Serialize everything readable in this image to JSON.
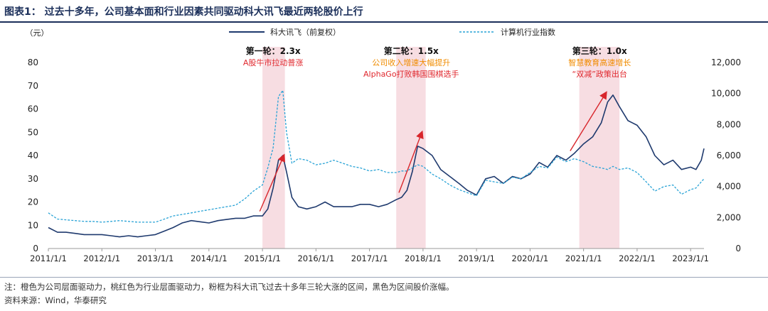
{
  "figure": {
    "title": "图表1：  过去十多年，公司基本面和行业因素共同驱动科大讯飞最近两轮股价上行",
    "footnote": "注：橙色为公司层面驱动力，桃红色为行业层面驱动力，粉框为科大讯飞过去十多年三轮大涨的区间，黑色为区间股价涨幅。",
    "source": "资料来源：Wind，华泰研究"
  },
  "chart_data": {
    "type": "line",
    "left_unit": "（元）",
    "yleft_ticks": [
      "0",
      "10",
      "20",
      "30",
      "40",
      "50",
      "60",
      "70",
      "80"
    ],
    "yleft_lim": [
      0,
      80
    ],
    "yright_ticks": [
      "0",
      "2,000",
      "4,000",
      "6,000",
      "8,000",
      "10,000",
      "12,000"
    ],
    "yright_lim": [
      0,
      12000
    ],
    "x_ticks": [
      "2011/1/1",
      "2012/1/1",
      "2013/1/1",
      "2014/1/1",
      "2015/1/1",
      "2016/1/1",
      "2017/1/1",
      "2018/1/1",
      "2019/1/1",
      "2020/1/1",
      "2021/1/1",
      "2022/1/1",
      "2023/1/1"
    ],
    "x_start": 2011.0,
    "x_end": 2023.25,
    "legend": {
      "stock": "科大讯飞（前复权）",
      "index": "计算机行业指数"
    },
    "colors": {
      "stock": "#1f3a6e",
      "index": "#29a3d6",
      "band": "#f7dde2",
      "arrow": "#d8262c",
      "orange": "#f08c00",
      "red": "#e0282e",
      "axis": "#999999"
    },
    "bands": [
      {
        "x0": 2015.0,
        "x1": 2015.42
      },
      {
        "x0": 2017.5,
        "x1": 2018.05
      },
      {
        "x0": 2020.92,
        "x1": 2021.67
      }
    ],
    "arrows": [
      {
        "x0": 2014.95,
        "y0": 16,
        "x1": 2015.4,
        "y1": 40
      },
      {
        "x0": 2017.55,
        "y0": 24,
        "x1": 2017.98,
        "y1": 50
      },
      {
        "x0": 2020.75,
        "y0": 42,
        "x1": 2021.42,
        "y1": 67
      }
    ],
    "annotations": [
      {
        "id": "r1",
        "x": 2015.2,
        "head": "第一轮：",
        "value": "2.3x",
        "lines": [
          {
            "text": "A股牛市拉动普涨",
            "tone": "red"
          }
        ]
      },
      {
        "id": "r2",
        "x": 2017.78,
        "head": "第二轮：",
        "value": "1.5x",
        "lines": [
          {
            "text": "公司收入增速大幅提升",
            "tone": "orange"
          },
          {
            "text": "AlphaGo打败韩国围棋选手",
            "tone": "red"
          }
        ]
      },
      {
        "id": "r3",
        "x": 2021.3,
        "head": "第三轮：",
        "value": "1.0x",
        "lines": [
          {
            "text": "智慧教育高速增长",
            "tone": "orange"
          },
          {
            "text": "“双减”政策出台",
            "tone": "red"
          }
        ]
      }
    ],
    "series": [
      {
        "name": "科大讯飞（前复权）",
        "axis": "left",
        "style": "solid",
        "x": [
          2011.0,
          2011.17,
          2011.33,
          2011.5,
          2011.67,
          2011.83,
          2012.0,
          2012.17,
          2012.33,
          2012.5,
          2012.67,
          2012.83,
          2013.0,
          2013.17,
          2013.33,
          2013.5,
          2013.67,
          2013.83,
          2014.0,
          2014.17,
          2014.33,
          2014.5,
          2014.67,
          2014.83,
          2015.0,
          2015.1,
          2015.2,
          2015.3,
          2015.38,
          2015.45,
          2015.55,
          2015.67,
          2015.83,
          2016.0,
          2016.17,
          2016.33,
          2016.5,
          2016.67,
          2016.83,
          2017.0,
          2017.17,
          2017.33,
          2017.5,
          2017.6,
          2017.7,
          2017.8,
          2017.9,
          2018.0,
          2018.17,
          2018.33,
          2018.5,
          2018.67,
          2018.83,
          2019.0,
          2019.17,
          2019.33,
          2019.5,
          2019.67,
          2019.83,
          2020.0,
          2020.17,
          2020.33,
          2020.5,
          2020.67,
          2020.83,
          2021.0,
          2021.17,
          2021.33,
          2021.45,
          2021.55,
          2021.67,
          2021.83,
          2022.0,
          2022.17,
          2022.33,
          2022.5,
          2022.67,
          2022.83,
          2023.0,
          2023.1,
          2023.2,
          2023.25
        ],
        "y": [
          9,
          7,
          7,
          6.5,
          6,
          6,
          6,
          5.5,
          5,
          5.5,
          5,
          5.5,
          6,
          7.5,
          9,
          11,
          12,
          11.5,
          11,
          12,
          12.5,
          13,
          13,
          14,
          14,
          17,
          26,
          38,
          40,
          33,
          22,
          18,
          17,
          18,
          20,
          18,
          18,
          18,
          19,
          19,
          18,
          19,
          21,
          22,
          25,
          33,
          44,
          43,
          40,
          34,
          31,
          28,
          25,
          23,
          30,
          31,
          28,
          31,
          30,
          32,
          37,
          35,
          40,
          38,
          41,
          45,
          48,
          54,
          63,
          66,
          61,
          55,
          53,
          48,
          40,
          36,
          38,
          34,
          35,
          34,
          38,
          43
        ]
      },
      {
        "name": "计算机行业指数",
        "axis": "right",
        "style": "dashed",
        "x": [
          2011.0,
          2011.17,
          2011.33,
          2011.5,
          2011.67,
          2011.83,
          2012.0,
          2012.17,
          2012.33,
          2012.5,
          2012.67,
          2012.83,
          2013.0,
          2013.17,
          2013.33,
          2013.5,
          2013.67,
          2013.83,
          2014.0,
          2014.17,
          2014.33,
          2014.5,
          2014.67,
          2014.83,
          2015.0,
          2015.1,
          2015.2,
          2015.3,
          2015.38,
          2015.45,
          2015.55,
          2015.67,
          2015.83,
          2016.0,
          2016.17,
          2016.33,
          2016.5,
          2016.67,
          2016.83,
          2017.0,
          2017.17,
          2017.33,
          2017.5,
          2017.6,
          2017.7,
          2017.8,
          2017.9,
          2018.0,
          2018.17,
          2018.33,
          2018.5,
          2018.67,
          2018.83,
          2019.0,
          2019.17,
          2019.33,
          2019.5,
          2019.67,
          2019.83,
          2020.0,
          2020.17,
          2020.33,
          2020.5,
          2020.67,
          2020.83,
          2021.0,
          2021.17,
          2021.33,
          2021.45,
          2021.55,
          2021.67,
          2021.83,
          2022.0,
          2022.17,
          2022.33,
          2022.5,
          2022.67,
          2022.83,
          2023.0,
          2023.1,
          2023.2,
          2023.25
        ],
        "y": [
          2300,
          1900,
          1850,
          1800,
          1750,
          1750,
          1700,
          1750,
          1800,
          1750,
          1700,
          1700,
          1700,
          1900,
          2100,
          2200,
          2300,
          2400,
          2500,
          2600,
          2700,
          2800,
          3200,
          3700,
          4100,
          5200,
          6500,
          9800,
          10200,
          7500,
          5500,
          5800,
          5700,
          5400,
          5500,
          5700,
          5500,
          5300,
          5200,
          5000,
          5100,
          4900,
          4900,
          5000,
          5000,
          5200,
          5400,
          5300,
          4800,
          4500,
          4100,
          3800,
          3600,
          3400,
          4400,
          4300,
          4200,
          4600,
          4500,
          4900,
          5300,
          5200,
          5900,
          5600,
          5800,
          5600,
          5300,
          5200,
          5100,
          5300,
          5100,
          5200,
          4900,
          4300,
          3700,
          4000,
          4100,
          3500,
          3800,
          3900,
          4300,
          4500
        ]
      }
    ]
  }
}
